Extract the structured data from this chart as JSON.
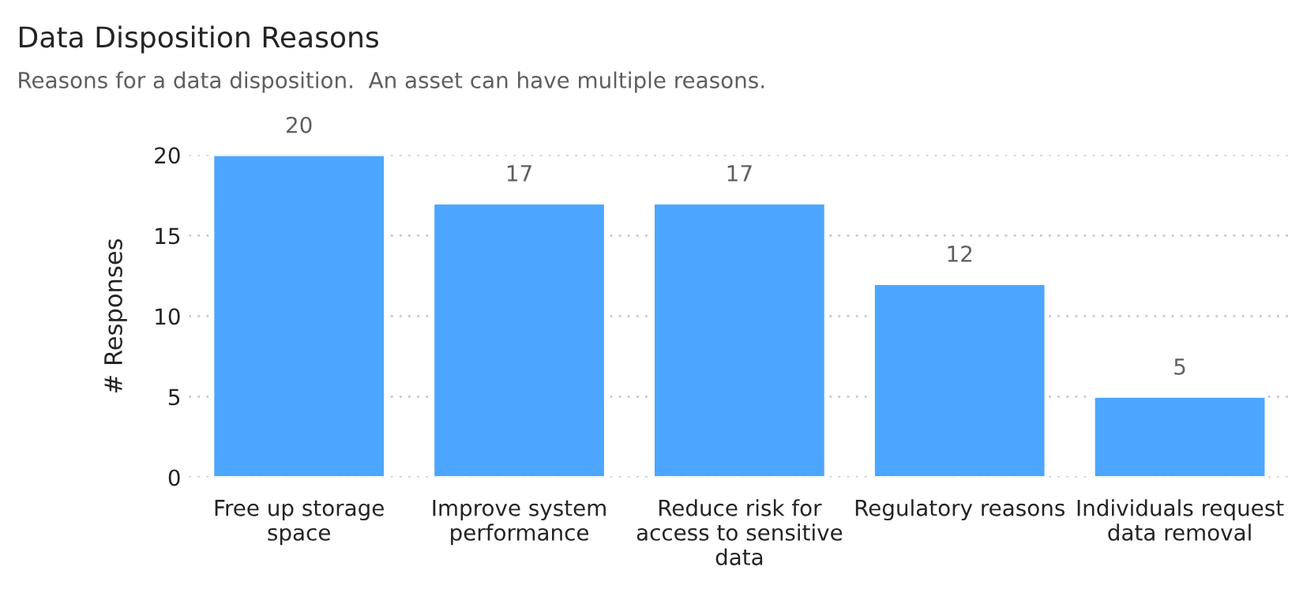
{
  "chart_data": {
    "type": "bar",
    "title": "Data Disposition Reasons",
    "subtitle": "Reasons for a data disposition.  An asset can have multiple reasons.",
    "ylabel": "# Responses",
    "categories": [
      "Free up storage\nspace",
      "Improve system\nperformance",
      "Reduce risk for\naccess to sensitive\ndata",
      "Regulatory reasons",
      "Individuals request\ndata removal"
    ],
    "values": [
      20,
      17,
      17,
      12,
      5
    ],
    "color": "#4ca6ff",
    "ylim": [
      0,
      20
    ],
    "yticks": [
      0,
      5,
      10,
      15,
      20
    ],
    "grid": "y",
    "data_labels": true
  }
}
